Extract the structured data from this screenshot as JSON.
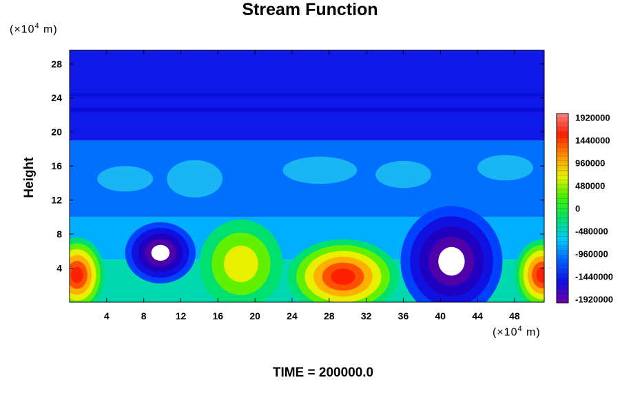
{
  "chart_data": {
    "type": "heatmap",
    "title": "Stream Function",
    "ylabel": "Height",
    "x_unit_prefix": "(×10",
    "x_unit_exp": "4",
    "x_unit_suffix": " m)",
    "y_unit_prefix": "(×10",
    "y_unit_exp": "4",
    "y_unit_suffix": " m)",
    "xlim": [
      0,
      51.2
    ],
    "ylim": [
      0,
      29.6
    ],
    "x_ticks": [
      4,
      8,
      12,
      16,
      20,
      24,
      28,
      32,
      36,
      40,
      44,
      48
    ],
    "y_ticks": [
      4,
      8,
      12,
      16,
      20,
      24,
      28
    ],
    "colorbar": {
      "min": -2000000,
      "max": 2000000,
      "labels": [
        1920000,
        1440000,
        960000,
        480000,
        0,
        -480000,
        -960000,
        -1440000,
        -1920000
      ]
    },
    "features": [
      {
        "label": "negative-cell",
        "x": 9.8,
        "y": 5.8,
        "value": -2000000
      },
      {
        "label": "negative-cell",
        "x": 41.5,
        "y": 4.6,
        "value": -2000000
      },
      {
        "label": "positive-cell",
        "x": 29.5,
        "y": 2.6,
        "value": 1500000
      },
      {
        "label": "positive-cell",
        "x": 0.5,
        "y": 2.8,
        "value": 1500000
      },
      {
        "label": "positive-cell",
        "x": 18.5,
        "y": 4.5,
        "value": 800000
      },
      {
        "label": "positive-cell",
        "x": 51.0,
        "y": 3.0,
        "value": 1400000
      }
    ],
    "colors": {
      "stops": [
        "#7000a8",
        "#1010e0",
        "#0060ff",
        "#00c8ff",
        "#00e070",
        "#40f000",
        "#e8f000",
        "#ff9000",
        "#ff2000",
        "#ff8080"
      ]
    }
  },
  "footer": {
    "time_label": "TIME = 200000.0"
  }
}
